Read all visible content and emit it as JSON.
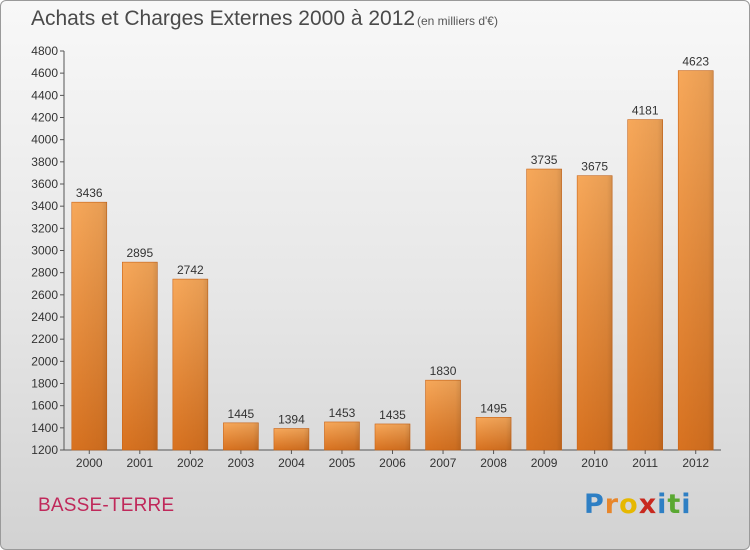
{
  "header": {
    "title": "Achats et Charges Externes 2000 à 2012",
    "subtitle": "(en milliers d'€)"
  },
  "footer": {
    "commune": "BASSE-TERRE",
    "logo_text": "Proxiti",
    "logo_letters": [
      {
        "ch": "P",
        "color": "#2e7fc4"
      },
      {
        "ch": "r",
        "color": "#e8862a"
      },
      {
        "ch": "o",
        "color": "#e6b800"
      },
      {
        "ch": "x",
        "color": "#c8281e"
      },
      {
        "ch": "i",
        "color": "#2e7fc4"
      },
      {
        "ch": "t",
        "color": "#5aa832"
      },
      {
        "ch": "i",
        "color": "#2e7fc4"
      }
    ]
  },
  "chart_data": {
    "type": "bar",
    "title": "Achats et Charges Externes 2000 à 2012",
    "subtitle": "(en milliers d'€)",
    "categories": [
      "2000",
      "2001",
      "2002",
      "2003",
      "2004",
      "2005",
      "2006",
      "2007",
      "2008",
      "2009",
      "2010",
      "2011",
      "2012"
    ],
    "values": [
      3436,
      2895,
      2742,
      1445,
      1394,
      1453,
      1435,
      1830,
      1495,
      3735,
      3675,
      4181,
      4623
    ],
    "ylim": [
      1200,
      4800
    ],
    "yticks": [
      1200,
      1400,
      1600,
      1800,
      2000,
      2200,
      2400,
      2600,
      2800,
      3000,
      3200,
      3400,
      3600,
      3800,
      4000,
      4200,
      4400,
      4600,
      4800
    ],
    "grid": false,
    "xlabel": "",
    "ylabel": "",
    "bar_color": "#f0923c"
  }
}
